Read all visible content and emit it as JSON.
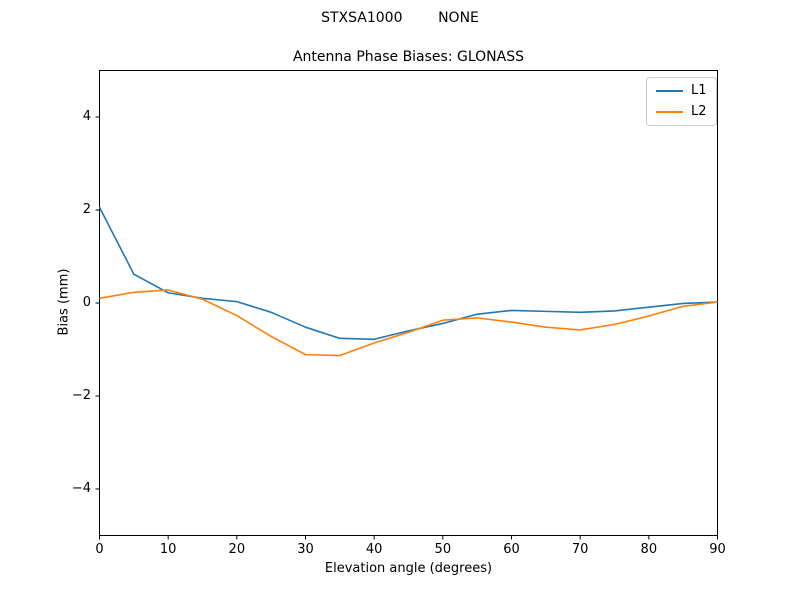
{
  "figure": {
    "suptitle": "STXSA1000        NONE",
    "background": "#ffffff"
  },
  "chart_data": {
    "type": "line",
    "suptitle": "STXSA1000        NONE",
    "title": "Antenna Phase Biases: GLONASS",
    "xlabel": "Elevation angle (degrees)",
    "ylabel": "Bias (mm)",
    "xlim": [
      0,
      90
    ],
    "ylim": [
      -5,
      5
    ],
    "xticks": [
      0,
      10,
      20,
      30,
      40,
      50,
      60,
      70,
      80,
      90
    ],
    "yticks": [
      -4,
      -2,
      0,
      2,
      4
    ],
    "grid": false,
    "axis_color": "#000000",
    "legend_position": "upper right",
    "x": [
      0,
      5,
      10,
      15,
      20,
      25,
      30,
      35,
      40,
      45,
      50,
      55,
      60,
      65,
      70,
      75,
      80,
      85,
      90
    ],
    "series": [
      {
        "name": "L1",
        "color": "#1f77b4",
        "values": [
          2.06,
          0.62,
          0.22,
          0.1,
          0.03,
          -0.2,
          -0.52,
          -0.76,
          -0.78,
          -0.6,
          -0.44,
          -0.24,
          -0.16,
          -0.18,
          -0.2,
          -0.17,
          -0.09,
          -0.01,
          0.02
        ]
      },
      {
        "name": "L2",
        "color": "#ff7f0e",
        "values": [
          0.1,
          0.23,
          0.28,
          0.08,
          -0.27,
          -0.72,
          -1.11,
          -1.13,
          -0.86,
          -0.63,
          -0.37,
          -0.32,
          -0.41,
          -0.52,
          -0.58,
          -0.46,
          -0.28,
          -0.07,
          0.02
        ]
      }
    ]
  }
}
